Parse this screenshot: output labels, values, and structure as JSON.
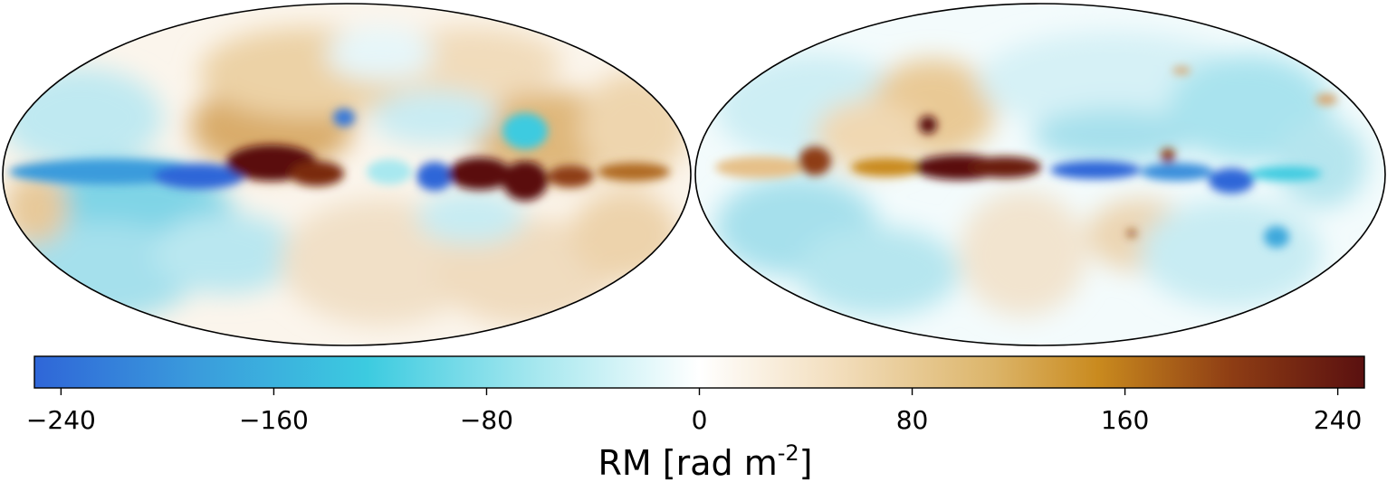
{
  "colorbar": {
    "ticks": [
      "−240",
      "−160",
      "−80",
      "0",
      "80",
      "160",
      "240"
    ],
    "tick_values": [
      -240,
      -160,
      -80,
      0,
      80,
      160,
      240
    ],
    "range": [
      -250,
      250
    ],
    "label_main": "RM [rad m",
    "label_exp": "-2",
    "label_close": "]",
    "colors": [
      "#2f66d8",
      "#3a9bdc",
      "#3ccbe0",
      "#a8e8ef",
      "#ffffff",
      "#f3dfbf",
      "#dcb56a",
      "#c98a1e",
      "#8e3d14",
      "#5a1010"
    ]
  },
  "maps": [
    {
      "name": "left-allsky-rm-map",
      "projection": "mollweide"
    },
    {
      "name": "right-allsky-rm-map",
      "projection": "mollweide"
    }
  ]
}
